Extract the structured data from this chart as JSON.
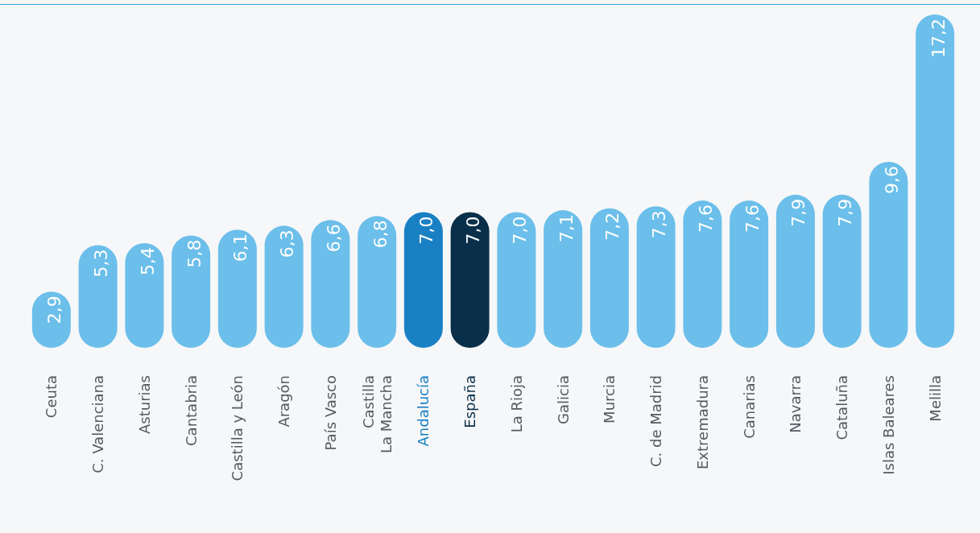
{
  "chart_data": {
    "type": "bar",
    "categories": [
      "Ceuta",
      "C. Valenciana",
      "Asturias",
      "Cantabria",
      "Castilla y León",
      "Aragón",
      "País Vasco",
      "Castilla\nLa Mancha",
      "Andalucía",
      "España",
      "La Rioja",
      "Galicia",
      "Murcia",
      "C. de Madrid",
      "Extremadura",
      "Canarias",
      "Navarra",
      "Cataluña",
      "Islas Baleares",
      "Melilla"
    ],
    "values": [
      2.9,
      5.3,
      5.4,
      5.8,
      6.1,
      6.3,
      6.6,
      6.8,
      7.0,
      7.0,
      7.0,
      7.1,
      7.2,
      7.3,
      7.6,
      7.6,
      7.9,
      7.9,
      9.6,
      17.2
    ],
    "value_labels": [
      "2,9",
      "5,3",
      "5,4",
      "5,8",
      "6,1",
      "6,3",
      "6,6",
      "6,8",
      "7,0",
      "7,0",
      "7,0",
      "7,1",
      "7,2",
      "7,3",
      "7,6",
      "7,6",
      "7,9",
      "7,9",
      "9,6",
      "17,2"
    ],
    "colors": [
      "#6bbfea",
      "#6bbfea",
      "#6bbfea",
      "#6bbfea",
      "#6bbfea",
      "#6bbfea",
      "#6bbfea",
      "#6bbfea",
      "#1a80c4",
      "#0a2f4a",
      "#6bbfea",
      "#6bbfea",
      "#6bbfea",
      "#6bbfea",
      "#6bbfea",
      "#6bbfea",
      "#6bbfea",
      "#6bbfea",
      "#6bbfea",
      "#6bbfea"
    ]
  }
}
